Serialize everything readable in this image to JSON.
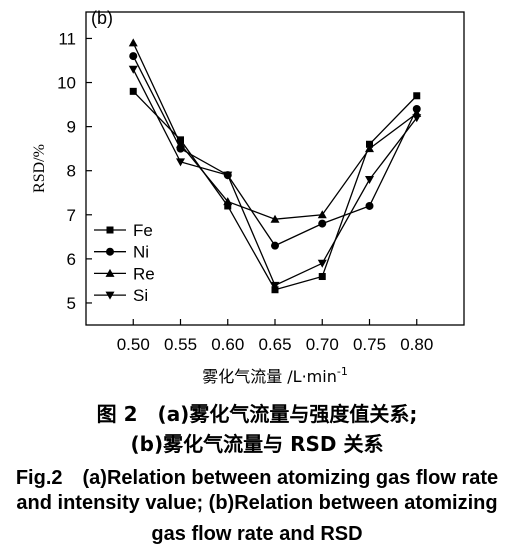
{
  "chart_data": {
    "type": "line",
    "panel_label": "(b)",
    "xlabel": "雾化气流量 /L·min",
    "xlabel_exponent": "-1",
    "ylabel": "RSD/%",
    "x": [
      0.5,
      0.55,
      0.6,
      0.65,
      0.7,
      0.75,
      0.8
    ],
    "x_tick_labels": [
      "0.50",
      "0.55",
      "0.60",
      "0.65",
      "0.70",
      "0.75",
      "0.80"
    ],
    "xlim": [
      0.45,
      0.85
    ],
    "ylim": [
      4.5,
      11.6
    ],
    "y_ticks": [
      5,
      6,
      7,
      8,
      9,
      10,
      11
    ],
    "legend_position": "bottom-left",
    "grid": false,
    "series": [
      {
        "name": "Fe",
        "marker": "square",
        "values": [
          9.8,
          8.7,
          7.2,
          5.3,
          5.6,
          8.6,
          9.7
        ]
      },
      {
        "name": "Ni",
        "marker": "circle",
        "values": [
          10.6,
          8.5,
          7.9,
          6.3,
          6.8,
          7.2,
          9.4
        ]
      },
      {
        "name": "Re",
        "marker": "triangle-up",
        "values": [
          10.9,
          8.6,
          7.3,
          6.9,
          7.0,
          8.5,
          9.3
        ]
      },
      {
        "name": "Si",
        "marker": "triangle-down",
        "values": [
          10.3,
          8.2,
          7.9,
          5.4,
          5.9,
          7.8,
          9.2
        ]
      }
    ]
  },
  "caption": {
    "zh_line1": "图 2　(a)雾化气流量与强度值关系;",
    "zh_line2": "(b)雾化气流量与 RSD 关系",
    "en_line1": "Fig.2　(a)Relation between atomizing gas flow rate",
    "en_line2": "and intensity value; (b)Relation between atomizing",
    "en_line3": "gas flow rate and RSD"
  }
}
